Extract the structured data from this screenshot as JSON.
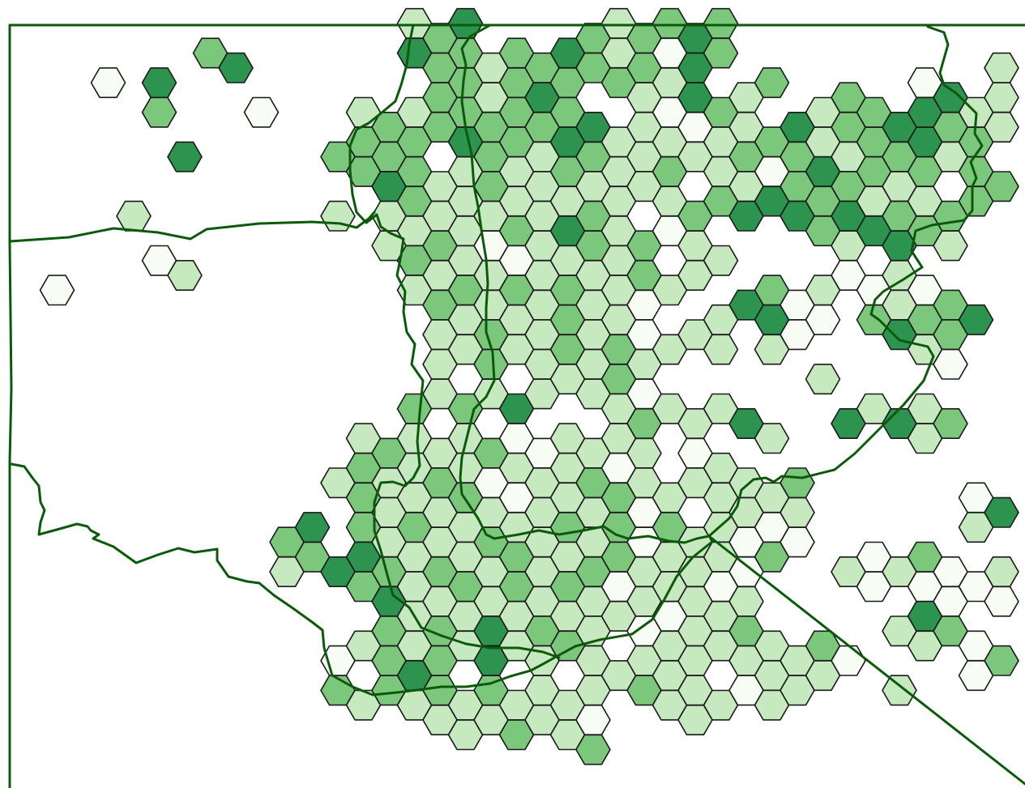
{
  "map": {
    "type": "hexbin-density",
    "legend": "none",
    "colors": {
      "boundary": "#0b5a0b",
      "level_0": "#f7fcf5",
      "level_1": "#c7e9c0",
      "level_2": "#7bc87c",
      "level_3": "#2d944f",
      "hex_stroke": "#1a1a1a"
    },
    "density_levels": [
      0,
      1,
      2,
      3
    ]
  }
}
